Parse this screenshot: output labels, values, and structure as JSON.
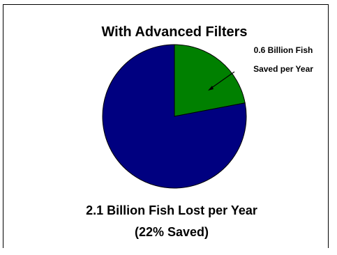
{
  "chart_data": {
    "type": "pie",
    "title": "With Advanced Filters",
    "slices": [
      {
        "label": "",
        "value": 78,
        "color": "#000080"
      },
      {
        "label": "0.6 Billion Fish Saved per Year",
        "value": 22,
        "color": "#008000"
      }
    ],
    "slice_label_lines": [
      "0.6 Billion Fish",
      "Saved per Year"
    ],
    "caption_lines": [
      "2.1 Billion Fish Lost per Year",
      "(22% Saved)"
    ],
    "legend": "none"
  }
}
